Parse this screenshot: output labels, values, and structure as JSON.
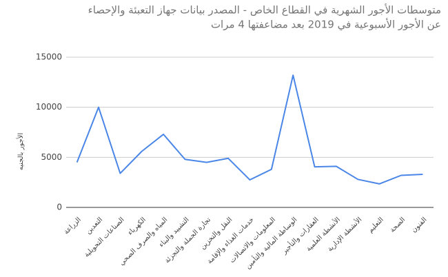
{
  "chart_data": {
    "type": "line",
    "title": [
      "متوسطات الأجور الشهرية في القطاع الخاص - المصدر بيانات جهاز التعبئة والإحصاء",
      "عن الأجور الأسبوعية في 2019 بعد مضاعفتها 4 مرات"
    ],
    "y_label": "الأجور بالجنيه",
    "categories": [
      "الزراعة",
      "التعدين",
      "الصناعات التحويلية",
      "الكهرباء",
      "المياه والصرف الصحي",
      "التشييد والبناء",
      "تجارة الجملة والتجزئة",
      "النقل والتخزين",
      "خدمات الغذاء والإقامة",
      "المعلومات والاتصالات",
      "الوساطة المالية والتأمين",
      "العقارات والتأجير",
      "الأنشطة العلمية",
      "الأنشطة الإدارية",
      "التعليم",
      "الصحة",
      "الفنون"
    ],
    "values": [
      4500,
      10000,
      3400,
      5600,
      7300,
      4800,
      4500,
      4900,
      2750,
      3800,
      13200,
      4050,
      4100,
      2800,
      2350,
      3200,
      3300
    ],
    "color": "#4a86e8",
    "ylim": [
      0,
      15000
    ],
    "yticks": [
      0,
      5000,
      10000,
      15000
    ],
    "grid": true
  }
}
